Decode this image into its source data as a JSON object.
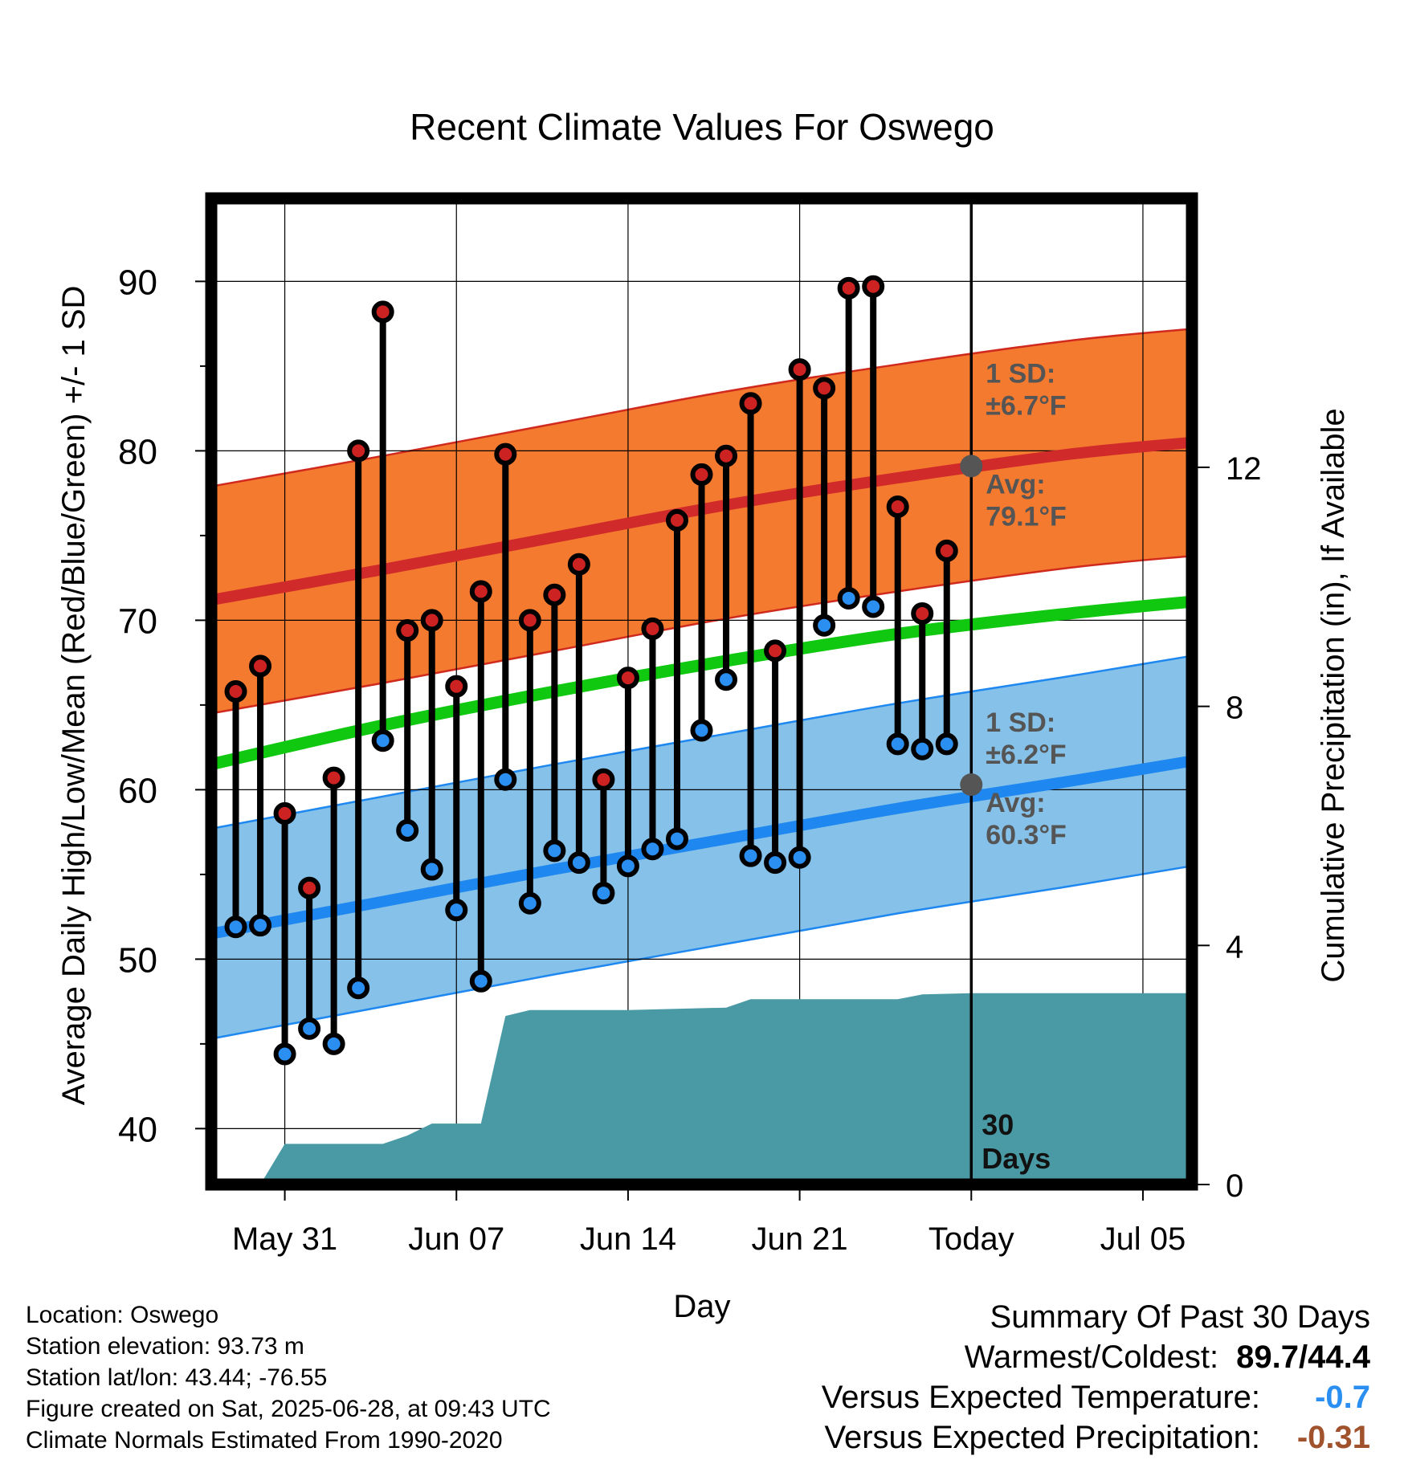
{
  "chart_data": {
    "type": "line",
    "title": "Recent Climate Values For Oswego",
    "xlabel": "Day",
    "ylabel": "Average Daily High/Low/Mean (Red/Blue/Green) +/- 1 SD",
    "y2label": "Cumulative Precipitation (in), If Available",
    "x_start": "2025-05-28",
    "x_end": "2025-07-07",
    "today": "2025-06-28",
    "ylim": [
      36.7,
      94.9
    ],
    "y2lim": [
      0,
      16.5
    ],
    "x_ticks": [
      {
        "date": "2025-05-31",
        "label": "May 31"
      },
      {
        "date": "2025-06-07",
        "label": "Jun 07"
      },
      {
        "date": "2025-06-14",
        "label": "Jun 14"
      },
      {
        "date": "2025-06-21",
        "label": "Jun 21"
      },
      {
        "date": "2025-06-28",
        "label": "Today"
      },
      {
        "date": "2025-07-05",
        "label": "Jul 05"
      }
    ],
    "y_ticks": [
      40,
      50,
      60,
      70,
      80,
      90
    ],
    "y2_ticks": [
      0,
      4,
      8,
      12
    ],
    "grid": true,
    "normals": {
      "dates": [
        "2025-05-28",
        "2025-06-04",
        "2025-06-11",
        "2025-06-18",
        "2025-06-25",
        "2025-07-02",
        "2025-07-07"
      ],
      "high_avg": [
        71.2,
        73.0,
        74.9,
        76.8,
        78.4,
        79.8,
        80.5
      ],
      "low_avg": [
        51.5,
        53.4,
        55.3,
        57.1,
        58.9,
        60.5,
        61.7
      ],
      "mean_avg": [
        61.5,
        63.8,
        65.8,
        67.6,
        69.2,
        70.4,
        71.1
      ],
      "high_sd": 6.7,
      "low_sd": 6.2
    },
    "series": [
      {
        "name": "High",
        "color": "#cc2222",
        "values": [
          {
            "x": "2025-05-29",
            "y": 65.8
          },
          {
            "x": "2025-05-30",
            "y": 67.3
          },
          {
            "x": "2025-05-31",
            "y": 58.6
          },
          {
            "x": "2025-06-01",
            "y": 54.2
          },
          {
            "x": "2025-06-02",
            "y": 60.7
          },
          {
            "x": "2025-06-03",
            "y": 80.0
          },
          {
            "x": "2025-06-04",
            "y": 88.2
          },
          {
            "x": "2025-06-05",
            "y": 69.4
          },
          {
            "x": "2025-06-06",
            "y": 70.0
          },
          {
            "x": "2025-06-07",
            "y": 66.1
          },
          {
            "x": "2025-06-08",
            "y": 71.7
          },
          {
            "x": "2025-06-09",
            "y": 79.8
          },
          {
            "x": "2025-06-10",
            "y": 70.0
          },
          {
            "x": "2025-06-11",
            "y": 71.5
          },
          {
            "x": "2025-06-12",
            "y": 73.3
          },
          {
            "x": "2025-06-13",
            "y": 60.6
          },
          {
            "x": "2025-06-14",
            "y": 66.6
          },
          {
            "x": "2025-06-15",
            "y": 69.5
          },
          {
            "x": "2025-06-16",
            "y": 75.9
          },
          {
            "x": "2025-06-17",
            "y": 78.6
          },
          {
            "x": "2025-06-18",
            "y": 79.7
          },
          {
            "x": "2025-06-19",
            "y": 82.8
          },
          {
            "x": "2025-06-20",
            "y": 68.2
          },
          {
            "x": "2025-06-21",
            "y": 84.8
          },
          {
            "x": "2025-06-22",
            "y": 83.7
          },
          {
            "x": "2025-06-23",
            "y": 89.6
          },
          {
            "x": "2025-06-24",
            "y": 89.7
          },
          {
            "x": "2025-06-25",
            "y": 76.7
          },
          {
            "x": "2025-06-26",
            "y": 70.4
          },
          {
            "x": "2025-06-27",
            "y": 74.1
          }
        ]
      },
      {
        "name": "Low",
        "color": "#2a8ff0",
        "values": [
          {
            "x": "2025-05-29",
            "y": 51.9
          },
          {
            "x": "2025-05-30",
            "y": 52.0
          },
          {
            "x": "2025-05-31",
            "y": 44.4
          },
          {
            "x": "2025-06-01",
            "y": 45.9
          },
          {
            "x": "2025-06-02",
            "y": 45.0
          },
          {
            "x": "2025-06-03",
            "y": 48.3
          },
          {
            "x": "2025-06-04",
            "y": 62.9
          },
          {
            "x": "2025-06-05",
            "y": 57.6
          },
          {
            "x": "2025-06-06",
            "y": 55.3
          },
          {
            "x": "2025-06-07",
            "y": 52.9
          },
          {
            "x": "2025-06-08",
            "y": 48.7
          },
          {
            "x": "2025-06-09",
            "y": 60.6
          },
          {
            "x": "2025-06-10",
            "y": 53.3
          },
          {
            "x": "2025-06-11",
            "y": 56.4
          },
          {
            "x": "2025-06-12",
            "y": 55.7
          },
          {
            "x": "2025-06-13",
            "y": 53.9
          },
          {
            "x": "2025-06-14",
            "y": 55.5
          },
          {
            "x": "2025-06-15",
            "y": 56.5
          },
          {
            "x": "2025-06-16",
            "y": 57.1
          },
          {
            "x": "2025-06-17",
            "y": 63.5
          },
          {
            "x": "2025-06-18",
            "y": 66.5
          },
          {
            "x": "2025-06-19",
            "y": 56.1
          },
          {
            "x": "2025-06-20",
            "y": 55.7
          },
          {
            "x": "2025-06-21",
            "y": 56.0
          },
          {
            "x": "2025-06-22",
            "y": 69.7
          },
          {
            "x": "2025-06-23",
            "y": 71.3
          },
          {
            "x": "2025-06-24",
            "y": 70.8
          },
          {
            "x": "2025-06-25",
            "y": 62.7
          },
          {
            "x": "2025-06-26",
            "y": 62.4
          },
          {
            "x": "2025-06-27",
            "y": 62.7
          }
        ]
      }
    ],
    "precipitation": {
      "color": "#4a9aa5",
      "dates": [
        "2025-05-30",
        "2025-05-31",
        "2025-06-01",
        "2025-06-02",
        "2025-06-03",
        "2025-06-04",
        "2025-06-05",
        "2025-06-06",
        "2025-06-07",
        "2025-06-08",
        "2025-06-09",
        "2025-06-10",
        "2025-06-14",
        "2025-06-18",
        "2025-06-19",
        "2025-06-24",
        "2025-06-25",
        "2025-06-26",
        "2025-06-28",
        "2025-07-07"
      ],
      "values": [
        0,
        0.68,
        0.68,
        0.68,
        0.68,
        0.68,
        0.82,
        1.02,
        1.02,
        1.02,
        2.82,
        2.92,
        2.92,
        2.96,
        3.1,
        3.1,
        3.1,
        3.18,
        3.2,
        3.2
      ]
    },
    "annotations": {
      "high_sd_title": "1 SD:",
      "high_sd_value": "±6.7°F",
      "high_avg_title": "Avg:",
      "high_avg_value": "79.1°F",
      "low_sd_title": "1 SD:",
      "low_sd_value": "±6.2°F",
      "low_avg_title": "Avg:",
      "low_avg_value": "60.3°F",
      "window_line1": "30",
      "window_line2": "Days"
    },
    "today_high_avg": 79.1,
    "today_low_avg": 60.3
  },
  "footer": {
    "location": "Location: Oswego",
    "elevation": "Station elevation: 93.73 m",
    "latlon": "Station lat/lon: 43.44; -76.55",
    "created": "Figure created on Sat, 2025-06-28, at 09:43 UTC",
    "normals": "Climate Normals Estimated From 1990-2020"
  },
  "summary": {
    "title": "Summary Of Past 30 Days",
    "warmest_label": "Warmest/Coldest:",
    "warmest_high": "89.7",
    "slash": "/",
    "warmest_low": "44.4",
    "temp_label": "Versus Expected Temperature:",
    "temp_value": "-0.7",
    "temp_color": "#2a8ff0",
    "precip_label": "Versus Expected Precipitation:",
    "precip_value": "-0.31",
    "precip_color": "#a0522d"
  }
}
